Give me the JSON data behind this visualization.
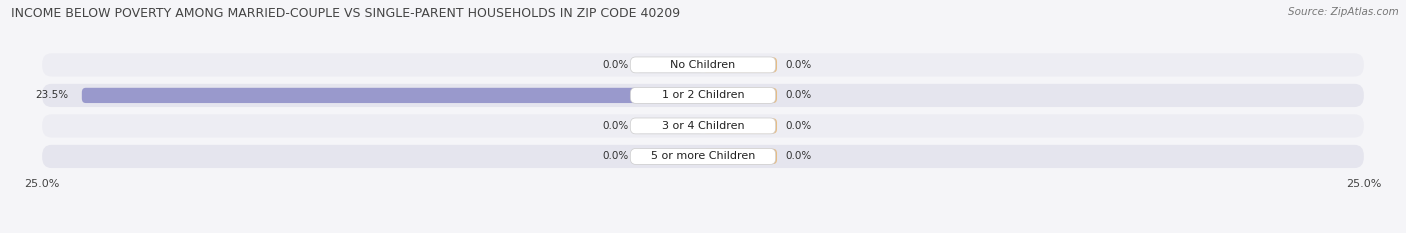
{
  "title": "INCOME BELOW POVERTY AMONG MARRIED-COUPLE VS SINGLE-PARENT HOUSEHOLDS IN ZIP CODE 40209",
  "source": "Source: ZipAtlas.com",
  "categories": [
    "No Children",
    "1 or 2 Children",
    "3 or 4 Children",
    "5 or more Children"
  ],
  "married_values": [
    0.0,
    23.5,
    0.0,
    0.0
  ],
  "single_values": [
    0.0,
    0.0,
    0.0,
    0.0
  ],
  "married_color": "#9999cc",
  "single_color": "#e8b878",
  "row_bg_color_even": "#ececf2",
  "row_bg_color_odd": "#e0e0ea",
  "bar_bg_color": "#f5f5f8",
  "xlim": 25.0,
  "title_fontsize": 9.0,
  "source_fontsize": 7.5,
  "label_fontsize": 7.5,
  "category_fontsize": 8.0,
  "legend_fontsize": 8.0,
  "tick_fontsize": 8.0,
  "bg_color": "#f5f5f8"
}
